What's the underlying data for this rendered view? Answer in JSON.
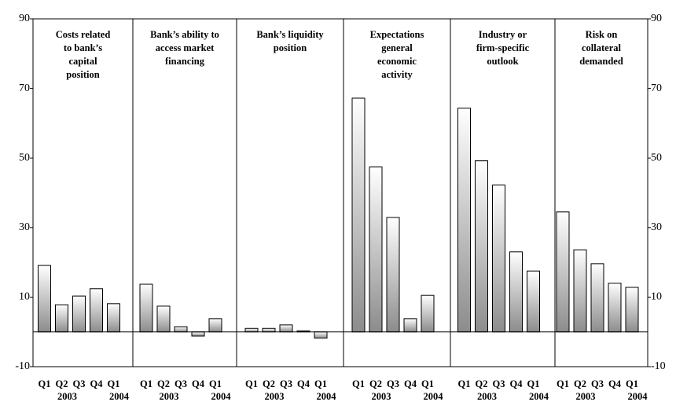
{
  "chart_data": {
    "type": "bar",
    "ylim": [
      -10,
      90
    ],
    "yticks": [
      -10,
      10,
      30,
      50,
      70,
      90
    ],
    "color": "#8c8c8c",
    "panels": [
      {
        "title": [
          "Costs related",
          "to bank’s",
          "capital",
          "position"
        ],
        "categories": [
          "Q1",
          "Q2",
          "Q3",
          "Q4",
          "Q1"
        ],
        "year_labels": [
          null,
          "2003",
          null,
          null,
          "2004"
        ],
        "values": [
          19.1,
          7.8,
          10.3,
          12.4,
          8.1
        ]
      },
      {
        "title": [
          "Bank’s ability to",
          "access market",
          "financing"
        ],
        "categories": [
          "Q1",
          "Q2",
          "Q3",
          "Q4",
          "Q1"
        ],
        "year_labels": [
          null,
          "2003",
          null,
          null,
          "2004"
        ],
        "values": [
          13.7,
          7.4,
          1.5,
          -1.2,
          3.8
        ]
      },
      {
        "title": [
          "Bank’s liquidity",
          "position"
        ],
        "categories": [
          "Q1",
          "Q2",
          "Q3",
          "Q4",
          "Q1"
        ],
        "year_labels": [
          null,
          "2003",
          null,
          null,
          "2004"
        ],
        "values": [
          1.0,
          1.0,
          2.0,
          0.3,
          -1.8
        ]
      },
      {
        "title": [
          "Expectations",
          "general",
          "economic",
          "activity"
        ],
        "categories": [
          "Q1",
          "Q2",
          "Q3",
          "Q4",
          "Q1"
        ],
        "year_labels": [
          null,
          "2003",
          null,
          null,
          "2004"
        ],
        "values": [
          67.2,
          47.4,
          32.9,
          3.8,
          10.5
        ]
      },
      {
        "title": [
          "Industry or",
          "firm-specific",
          "outlook"
        ],
        "categories": [
          "Q1",
          "Q2",
          "Q3",
          "Q4",
          "Q1"
        ],
        "year_labels": [
          null,
          "2003",
          null,
          null,
          "2004"
        ],
        "values": [
          64.3,
          49.2,
          42.2,
          23.0,
          17.5
        ]
      },
      {
        "title": [
          "Risk on",
          "collateral",
          "demanded"
        ],
        "categories": [
          "Q1",
          "Q2",
          "Q3",
          "Q4",
          "Q1"
        ],
        "year_labels": [
          null,
          "2003",
          null,
          null,
          "2004"
        ],
        "values": [
          34.5,
          23.6,
          19.6,
          14.0,
          12.8
        ]
      }
    ]
  }
}
